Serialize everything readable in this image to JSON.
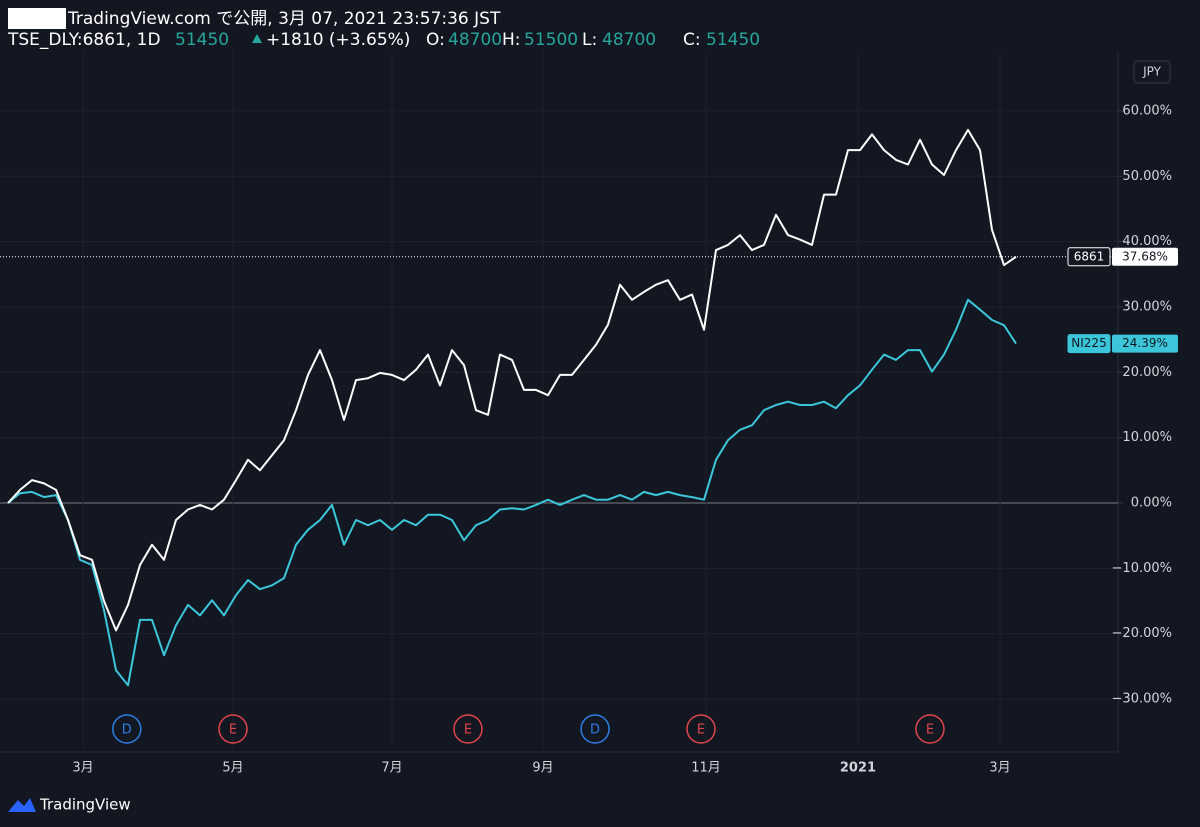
{
  "header": {
    "publisher": "TradingView.com で公開, 3月 07, 2021 23:57:36 JST",
    "symbol": "TSE_DLY:6861, 1D",
    "last": "51450",
    "change": "+1810 (+3.65%)",
    "o_label": "O:",
    "o": "48700",
    "h_label": "H:",
    "h": "51500",
    "l_label": "L:",
    "l": "48700",
    "c_label": "C:",
    "c": "51450"
  },
  "currency": "JPY",
  "footer": "TradingView",
  "chart_data": {
    "type": "line",
    "x": [
      0,
      1,
      2,
      3,
      4,
      5,
      6,
      7,
      8,
      9,
      10,
      11,
      12,
      13,
      14,
      15,
      16,
      17,
      18,
      19,
      20,
      21,
      22,
      23,
      24,
      25,
      26,
      27,
      28,
      29,
      30,
      31,
      32,
      33,
      34,
      35,
      36,
      37,
      38,
      39,
      40,
      41,
      42,
      43,
      44,
      45,
      46,
      47,
      48,
      49,
      50,
      51,
      52,
      53,
      54,
      55,
      56,
      57,
      58,
      59,
      60,
      61,
      62,
      63,
      64,
      65,
      66,
      67,
      68,
      69,
      70,
      71,
      72,
      73,
      74,
      75,
      76,
      77,
      78,
      79,
      80,
      81,
      82,
      83,
      84
    ],
    "xlim": [
      0,
      92.5
    ],
    "xticks": [
      {
        "value": 6.25,
        "label": "3月"
      },
      {
        "value": 18.75,
        "label": "5月"
      },
      {
        "value": 32,
        "label": "7月"
      },
      {
        "value": 44.58,
        "label": "9月"
      },
      {
        "value": 58.17,
        "label": "11月"
      },
      {
        "value": 70.83,
        "label": "2021"
      },
      {
        "value": 82.67,
        "label": "3月"
      }
    ],
    "ylim": [
      -37.5,
      68.1
    ],
    "yticks": [
      {
        "value": 60,
        "label": "60.00%"
      },
      {
        "value": 50,
        "label": "50.00%"
      },
      {
        "value": 40,
        "label": "40.00%"
      },
      {
        "value": 30,
        "label": "30.00%"
      },
      {
        "value": 20,
        "label": "20.00%"
      },
      {
        "value": 10,
        "label": "10.00%"
      },
      {
        "value": 0,
        "label": "0.00%"
      },
      {
        "value": -10,
        "label": "−10.00%"
      },
      {
        "value": -20,
        "label": "−20.00%"
      },
      {
        "value": -30,
        "label": "−30.00%"
      }
    ],
    "grid": true,
    "series": [
      {
        "name": "6861",
        "color": "#ffffff",
        "values": [
          0,
          2,
          3.5,
          3,
          2,
          -2.6,
          -8,
          -8.7,
          -15,
          -19.5,
          -15.6,
          -9.5,
          -6.4,
          -8.7,
          -2.6,
          -1,
          -0.3,
          -1,
          0.5,
          3.5,
          6.6,
          5,
          7.3,
          9.6,
          14.2,
          19.6,
          23.4,
          18.8,
          12.7,
          18.8,
          19.1,
          19.9,
          19.6,
          18.8,
          20.4,
          22.7,
          18,
          23.4,
          21.1,
          14.2,
          13.5,
          22.7,
          21.9,
          17.3,
          17.3,
          16.5,
          19.6,
          19.6,
          21.9,
          24.2,
          27.3,
          33.4,
          31.1,
          32.3,
          33.4,
          34.1,
          31.1,
          31.9,
          26.5,
          38.7,
          39.5,
          41,
          38.7,
          39.5,
          44.1,
          41,
          40.3,
          39.5,
          47.2,
          47.2,
          54,
          54,
          56.4,
          54,
          52.5,
          51.8,
          55.6,
          51.8,
          50.2,
          54,
          57.1,
          54,
          41.8,
          36.4,
          37.68
        ],
        "value_labels": [
          null,
          null,
          null,
          null,
          null,
          null,
          null,
          null,
          null,
          null,
          null,
          null,
          null,
          null,
          null,
          null,
          null,
          null,
          null,
          null,
          null,
          null,
          null,
          null,
          null,
          null,
          null,
          null,
          null,
          null,
          null,
          null,
          null,
          null,
          null,
          null,
          null,
          null,
          null,
          null,
          null,
          null,
          null,
          null,
          null,
          null,
          null,
          null,
          null,
          null,
          null,
          null,
          null,
          null,
          null,
          null,
          null,
          null,
          null,
          null,
          null,
          null,
          null,
          null,
          null,
          null,
          null,
          null,
          null,
          null,
          null,
          null,
          null,
          null,
          null,
          null,
          null,
          null,
          null,
          null,
          null,
          null,
          null,
          null,
          "37.68%"
        ]
      },
      {
        "name": "NI225",
        "color": "#3cc6da",
        "values": [
          0,
          1.5,
          1.7,
          0.9,
          1.2,
          -2.6,
          -8.7,
          -9.5,
          -16.4,
          -25.6,
          -27.9,
          -17.9,
          -17.9,
          -23.3,
          -18.7,
          -15.6,
          -17.2,
          -14.9,
          -17.2,
          -14.1,
          -11.8,
          -13.2,
          -12.6,
          -11.5,
          -6.4,
          -4.1,
          -2.6,
          -0.3,
          -6.4,
          -2.6,
          -3.4,
          -2.6,
          -4.1,
          -2.6,
          -3.4,
          -1.8,
          -1.8,
          -2.6,
          -5.7,
          -3.4,
          -2.6,
          -1,
          -0.8,
          -1,
          -0.3,
          0.5,
          -0.3,
          0.5,
          1.2,
          0.5,
          0.5,
          1.2,
          0.5,
          1.7,
          1.2,
          1.7,
          1.2,
          0.9,
          0.5,
          6.6,
          9.6,
          11.2,
          11.9,
          14.2,
          15,
          15.5,
          15,
          15,
          15.5,
          14.5,
          16.5,
          18,
          20.4,
          22.7,
          21.9,
          23.4,
          23.4,
          20.1,
          22.7,
          26.5,
          31.1,
          29.6,
          28,
          27.2,
          24.39
        ],
        "value_labels": [
          null,
          null,
          null,
          null,
          null,
          null,
          null,
          null,
          null,
          null,
          null,
          null,
          null,
          null,
          null,
          null,
          null,
          null,
          null,
          null,
          null,
          null,
          null,
          null,
          null,
          null,
          null,
          null,
          null,
          null,
          null,
          null,
          null,
          null,
          null,
          null,
          null,
          null,
          null,
          null,
          null,
          null,
          null,
          null,
          null,
          null,
          null,
          null,
          null,
          null,
          null,
          null,
          null,
          null,
          null,
          null,
          null,
          null,
          null,
          null,
          null,
          null,
          null,
          null,
          null,
          null,
          null,
          null,
          null,
          null,
          null,
          null,
          null,
          null,
          null,
          null,
          null,
          null,
          null,
          null,
          null,
          null,
          null,
          null,
          "24.39%"
        ]
      }
    ],
    "events": [
      {
        "label": "D",
        "x": 9.9,
        "color": "#2d7ee6"
      },
      {
        "label": "E",
        "x": 18.75,
        "color": "#e0454d"
      },
      {
        "label": "E",
        "x": 38.33,
        "color": "#e0454d"
      },
      {
        "label": "D",
        "x": 48.92,
        "color": "#2d7ee6"
      },
      {
        "label": "E",
        "x": 57.75,
        "color": "#e0454d"
      },
      {
        "label": "E",
        "x": 76.83,
        "color": "#e0454d"
      }
    ]
  }
}
